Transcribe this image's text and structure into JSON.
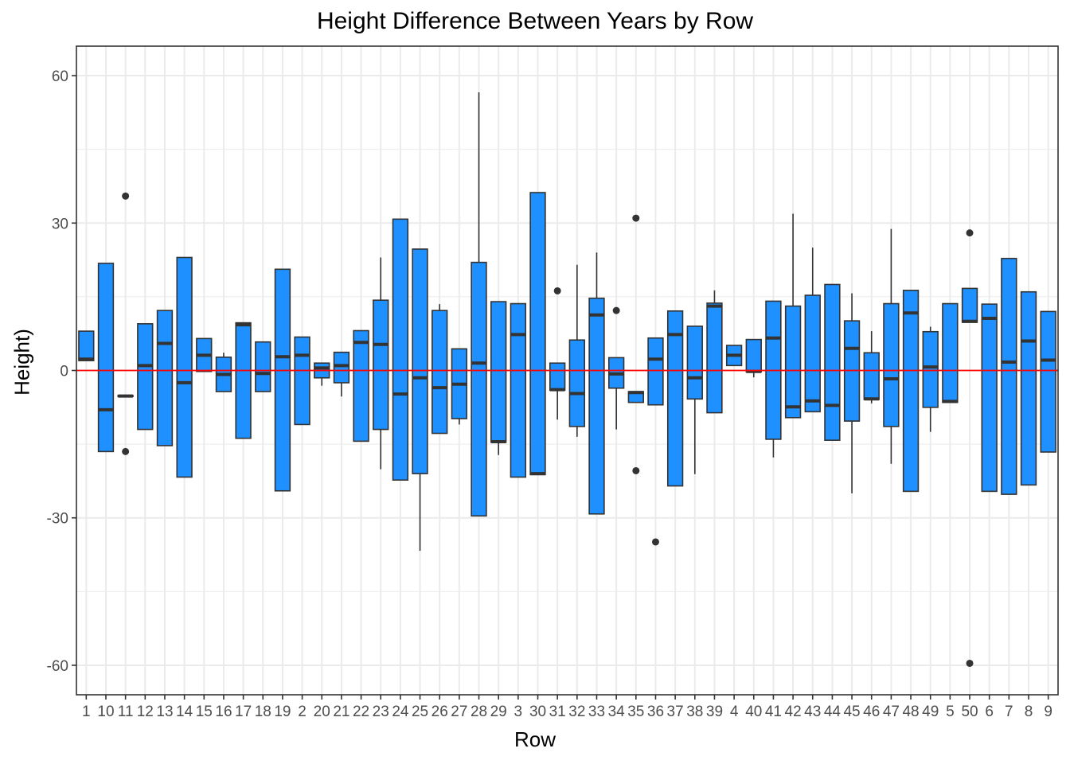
{
  "colors": {
    "box_fill": "#1E90FF",
    "box_stroke": "#333333",
    "ref_line": "#FF0000",
    "grid": "#EBEBEB",
    "panel_border": "#333333"
  },
  "chart_data": {
    "type": "box",
    "title": "Height Difference Between Years by Row",
    "xlabel": "Row",
    "ylabel": "Height)",
    "ylim": [
      -66,
      66
    ],
    "yticks": [
      -60,
      -30,
      0,
      30,
      60
    ],
    "grid": true,
    "legend": "none",
    "reference_line": {
      "y": 0
    },
    "categories": [
      "1",
      "10",
      "11",
      "12",
      "13",
      "14",
      "15",
      "16",
      "17",
      "18",
      "19",
      "2",
      "20",
      "21",
      "22",
      "23",
      "24",
      "25",
      "26",
      "27",
      "28",
      "29",
      "3",
      "30",
      "31",
      "32",
      "33",
      "34",
      "35",
      "36",
      "37",
      "38",
      "39",
      "4",
      "40",
      "41",
      "42",
      "43",
      "44",
      "45",
      "46",
      "47",
      "48",
      "49",
      "5",
      "50",
      "6",
      "7",
      "8",
      "9"
    ],
    "boxes": [
      {
        "min": 2,
        "q1": 2,
        "median": 2.3,
        "q3": 8,
        "max": 8,
        "outliers": []
      },
      {
        "min": -16.5,
        "q1": -16.5,
        "median": -8,
        "q3": 21.8,
        "max": 21.8,
        "outliers": []
      },
      {
        "min": -5.3,
        "q1": -5.3,
        "median": -5.2,
        "q3": -5.1,
        "max": -5.1,
        "outliers": [
          35.5,
          -16.5
        ]
      },
      {
        "min": -12,
        "q1": -12,
        "median": 1,
        "q3": 9.5,
        "max": 9.5,
        "outliers": []
      },
      {
        "min": -15.3,
        "q1": -15.3,
        "median": 5.5,
        "q3": 12.2,
        "max": 12.2,
        "outliers": []
      },
      {
        "min": -21.7,
        "q1": -21.7,
        "median": -2.5,
        "q3": 23,
        "max": 23,
        "outliers": []
      },
      {
        "min": -0.2,
        "q1": -0.2,
        "median": 3.1,
        "q3": 6.5,
        "max": 6.5,
        "outliers": []
      },
      {
        "min": -4.3,
        "q1": -4.3,
        "median": -0.8,
        "q3": 2.7,
        "max": 3.6,
        "outliers": []
      },
      {
        "min": -13.8,
        "q1": -13.8,
        "median": 9.3,
        "q3": 9.7,
        "max": 9.7,
        "outliers": []
      },
      {
        "min": -4.3,
        "q1": -4.3,
        "median": -0.6,
        "q3": 5.8,
        "max": 5.8,
        "outliers": []
      },
      {
        "min": -24.5,
        "q1": -24.5,
        "median": 2.8,
        "q3": 20.6,
        "max": 20.6,
        "outliers": []
      },
      {
        "min": -11,
        "q1": -11,
        "median": 3.1,
        "q3": 6.8,
        "max": 6.8,
        "outliers": []
      },
      {
        "min": -3.1,
        "q1": -1.5,
        "median": 0.5,
        "q3": 1.5,
        "max": 1.5,
        "outliers": []
      },
      {
        "min": -5.3,
        "q1": -2.5,
        "median": 1,
        "q3": 3.7,
        "max": 3.7,
        "outliers": []
      },
      {
        "min": -14.4,
        "q1": -14.4,
        "median": 5.7,
        "q3": 8.1,
        "max": 8.1,
        "outliers": []
      },
      {
        "min": -20.1,
        "q1": -12,
        "median": 5.3,
        "q3": 14.3,
        "max": 23,
        "outliers": []
      },
      {
        "min": -22.3,
        "q1": -22.3,
        "median": -4.8,
        "q3": 30.8,
        "max": 30.8,
        "outliers": []
      },
      {
        "min": -36.7,
        "q1": -21,
        "median": -1.5,
        "q3": 24.7,
        "max": 24.7,
        "outliers": []
      },
      {
        "min": -12.8,
        "q1": -12.8,
        "median": -3.5,
        "q3": 12.2,
        "max": 13.5,
        "outliers": []
      },
      {
        "min": -11,
        "q1": -9.8,
        "median": -2.8,
        "q3": 4.4,
        "max": 4.4,
        "outliers": []
      },
      {
        "min": -29.6,
        "q1": -29.6,
        "median": 1.5,
        "q3": 22,
        "max": 56.6,
        "outliers": []
      },
      {
        "min": -17.2,
        "q1": -14.6,
        "median": -14.5,
        "q3": 14,
        "max": 14,
        "outliers": []
      },
      {
        "min": -21.7,
        "q1": -21.7,
        "median": 7.3,
        "q3": 13.6,
        "max": 13.6,
        "outliers": []
      },
      {
        "min": -21.2,
        "q1": -21.2,
        "median": -21,
        "q3": 36.2,
        "max": 36.2,
        "outliers": []
      },
      {
        "min": -10,
        "q1": -4,
        "median": -3.9,
        "q3": 1.5,
        "max": 1.5,
        "outliers": [
          16.2
        ]
      },
      {
        "min": -13.5,
        "q1": -11.4,
        "median": -4.7,
        "q3": 6.2,
        "max": 21.5,
        "outliers": []
      },
      {
        "min": -29.2,
        "q1": -29.2,
        "median": 11.3,
        "q3": 14.7,
        "max": 24,
        "outliers": []
      },
      {
        "min": -12,
        "q1": -3.6,
        "median": -0.7,
        "q3": 2.6,
        "max": 2.6,
        "outliers": [
          12.2
        ]
      },
      {
        "min": -6.5,
        "q1": -6.5,
        "median": -4.5,
        "q3": -4.3,
        "max": -4.3,
        "outliers": [
          31,
          -20.4
        ]
      },
      {
        "min": -7,
        "q1": -7,
        "median": 2.3,
        "q3": 6.6,
        "max": 6.6,
        "outliers": [
          -34.9
        ]
      },
      {
        "min": -23.5,
        "q1": -23.5,
        "median": 7.3,
        "q3": 12.1,
        "max": 12.1,
        "outliers": []
      },
      {
        "min": -21.1,
        "q1": -5.8,
        "median": -1.5,
        "q3": 9,
        "max": 9,
        "outliers": []
      },
      {
        "min": -8.6,
        "q1": -8.6,
        "median": 13.1,
        "q3": 13.7,
        "max": 16.3,
        "outliers": []
      },
      {
        "min": 1,
        "q1": 1,
        "median": 3.1,
        "q3": 5.1,
        "max": 5.1,
        "outliers": []
      },
      {
        "min": -1.4,
        "q1": -0.3,
        "median": -0.2,
        "q3": 6.3,
        "max": 6.3,
        "outliers": []
      },
      {
        "min": -17.7,
        "q1": -14,
        "median": 6.6,
        "q3": 14.1,
        "max": 14.1,
        "outliers": []
      },
      {
        "min": -9.6,
        "q1": -9.6,
        "median": -7.4,
        "q3": 13.1,
        "max": 31.9,
        "outliers": []
      },
      {
        "min": -8.4,
        "q1": -8.4,
        "median": -6.2,
        "q3": 15.3,
        "max": 25,
        "outliers": []
      },
      {
        "min": -14.2,
        "q1": -14.2,
        "median": -7.1,
        "q3": 17.5,
        "max": 17.5,
        "outliers": []
      },
      {
        "min": -25,
        "q1": -10.3,
        "median": 4.5,
        "q3": 10.1,
        "max": 15.7,
        "outliers": []
      },
      {
        "min": -6.7,
        "q1": -5.9,
        "median": -5.8,
        "q3": 3.6,
        "max": 8,
        "outliers": []
      },
      {
        "min": -19,
        "q1": -11.4,
        "median": -1.7,
        "q3": 13.6,
        "max": 28.8,
        "outliers": []
      },
      {
        "min": -24.6,
        "q1": -24.6,
        "median": 11.7,
        "q3": 16.3,
        "max": 16.3,
        "outliers": []
      },
      {
        "min": -12.5,
        "q1": -7.5,
        "median": 0.7,
        "q3": 7.9,
        "max": 8.9,
        "outliers": []
      },
      {
        "min": -6.5,
        "q1": -6.5,
        "median": -6.3,
        "q3": 13.6,
        "max": 13.6,
        "outliers": []
      },
      {
        "min": 9.8,
        "q1": 9.8,
        "median": 10,
        "q3": 16.7,
        "max": 16.7,
        "outliers": [
          28,
          -59.6
        ]
      },
      {
        "min": -24.6,
        "q1": -24.6,
        "median": 10.6,
        "q3": 13.5,
        "max": 13.5,
        "outliers": []
      },
      {
        "min": -25.2,
        "q1": -25.2,
        "median": 1.7,
        "q3": 22.8,
        "max": 22.8,
        "outliers": []
      },
      {
        "min": -23.3,
        "q1": -23.3,
        "median": 6,
        "q3": 16,
        "max": 16,
        "outliers": []
      },
      {
        "min": -16.6,
        "q1": -16.6,
        "median": 2.1,
        "q3": 12,
        "max": 12,
        "outliers": []
      }
    ]
  }
}
